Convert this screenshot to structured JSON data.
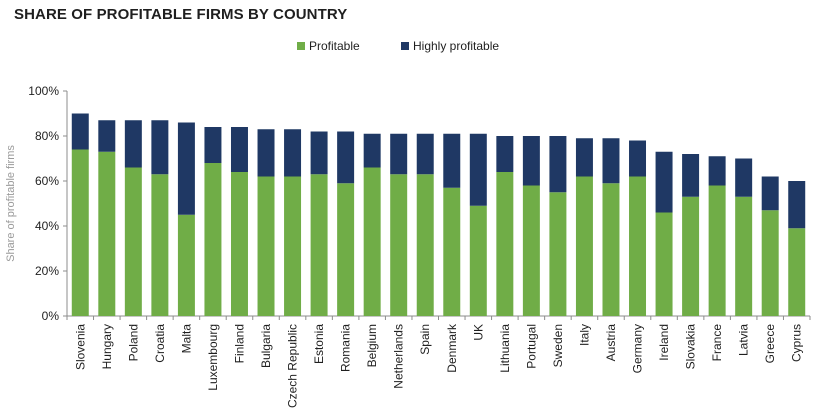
{
  "chart_data": {
    "type": "bar",
    "stacked": true,
    "title": "SHARE OF PROFITABLE FIRMS BY COUNTRY",
    "xlabel": "",
    "ylabel": "Share of profitable firms",
    "ylim": [
      0,
      100
    ],
    "yticks": [
      "0%",
      "20%",
      "40%",
      "60%",
      "80%",
      "100%"
    ],
    "legend_position": "top-center",
    "categories": [
      "Slovenia",
      "Hungary",
      "Poland",
      "Croatia",
      "Malta",
      "Luxembourg",
      "Finland",
      "Bulgaria",
      "Czech Republic",
      "Estonia",
      "Romania",
      "Belgium",
      "Netherlands",
      "Spain",
      "Denmark",
      "UK",
      "Lithuania",
      "Portugal",
      "Sweden",
      "Italy",
      "Austria",
      "Germany",
      "Ireland",
      "Slovakia",
      "France",
      "Latvia",
      "Greece",
      "Cyprus"
    ],
    "series": [
      {
        "name": "Profitable",
        "color": "#70ad47",
        "values": [
          74,
          73,
          66,
          63,
          45,
          68,
          64,
          62,
          62,
          63,
          59,
          66,
          63,
          63,
          57,
          49,
          64,
          58,
          55,
          62,
          59,
          62,
          46,
          53,
          58,
          53,
          47,
          39
        ]
      },
      {
        "name": "Highly profitable",
        "color": "#1f3864",
        "values": [
          16,
          14,
          21,
          24,
          41,
          16,
          20,
          21,
          21,
          19,
          23,
          15,
          18,
          18,
          24,
          32,
          16,
          22,
          25,
          17,
          20,
          16,
          27,
          19,
          13,
          17,
          15,
          21
        ]
      }
    ]
  }
}
